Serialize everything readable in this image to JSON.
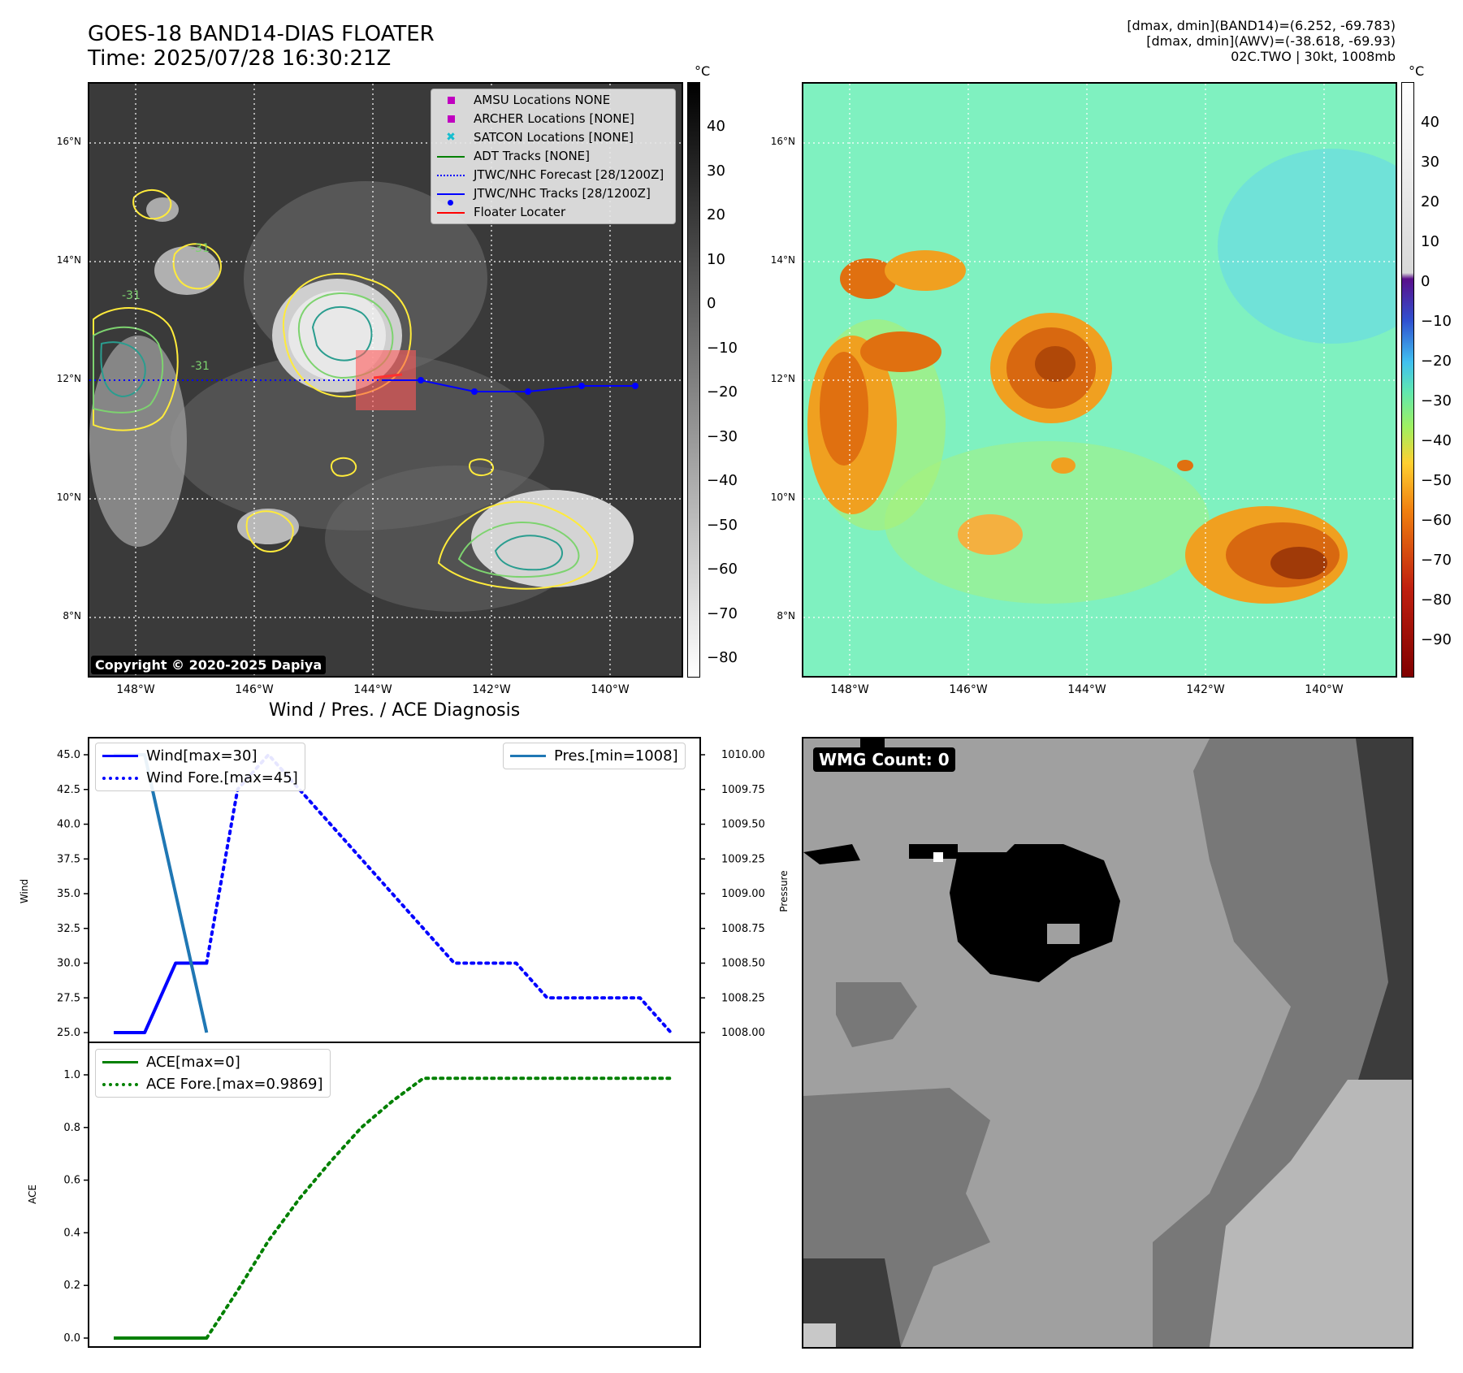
{
  "header": {
    "title_line1": "GOES-18 BAND14-DIAS FLOATER",
    "title_line2": "Time: 2025/07/28 16:30:21Z",
    "info_line1": "[dmax, dmin](BAND14)=(6.252, -69.783)",
    "info_line2": "[dmax, dmin](AWV)=(-38.618, -69.93)",
    "info_line3": "02C.TWO | 30kt, 1008mb"
  },
  "map": {
    "lat_labels": [
      "16°N",
      "14°N",
      "12°N",
      "10°N",
      "8°N"
    ],
    "lon_labels": [
      "148°W",
      "146°W",
      "144°W",
      "142°W",
      "140°W"
    ],
    "contour_labels": [
      "-31",
      "-31",
      "-31"
    ],
    "copyright": "Copyright © 2020-2025 Dapiya",
    "track_color": "#0000ff",
    "floater_color": "#ff3030"
  },
  "legend": {
    "items": [
      {
        "label": "AMSU Locations NONE",
        "icon": "magenta-square"
      },
      {
        "label": "ARCHER Locations [NONE]",
        "icon": "magenta-square"
      },
      {
        "label": "SATCON Locations [NONE]",
        "icon": "cyan-x"
      },
      {
        "label": "ADT Tracks [NONE]",
        "icon": "green-line"
      },
      {
        "label": "JTWC/NHC Forecast [28/1200Z]",
        "icon": "blue-dotted-line"
      },
      {
        "label": "JTWC/NHC Tracks [28/1200Z]",
        "icon": "blue-dot-line"
      },
      {
        "label": "Floater Locater",
        "icon": "red-line"
      }
    ]
  },
  "colorbar_gray": {
    "unit": "°C",
    "ticks": [
      "40",
      "30",
      "20",
      "10",
      "0",
      "−10",
      "−20",
      "−30",
      "−40",
      "−50",
      "−60",
      "−70",
      "−80"
    ]
  },
  "colorbar_color": {
    "unit": "°C",
    "ticks": [
      "40",
      "30",
      "20",
      "10",
      "0",
      "−10",
      "−20",
      "−30",
      "−40",
      "−50",
      "−60",
      "−70",
      "−80",
      "−90"
    ]
  },
  "diagnosis": {
    "title": "Wind / Pres. / ACE Diagnosis",
    "wind_ylabel": "Wind",
    "pres_ylabel": "Pressure",
    "ace_ylabel": "ACE",
    "wind_ticks": [
      "45.0",
      "42.5",
      "40.0",
      "37.5",
      "35.0",
      "32.5",
      "30.0",
      "27.5",
      "25.0"
    ],
    "pres_ticks": [
      "1010.00",
      "1009.75",
      "1009.50",
      "1009.25",
      "1009.00",
      "1008.75",
      "1008.50",
      "1008.25",
      "1008.00"
    ],
    "ace_ticks": [
      "1.0",
      "0.8",
      "0.6",
      "0.4",
      "0.2",
      "0.0"
    ],
    "legend_wind": "Wind[max=30]",
    "legend_wind_fore": "Wind Fore.[max=45]",
    "legend_pres": "Pres.[min=1008]",
    "legend_ace": "ACE[max=0]",
    "legend_ace_fore": "ACE Fore.[max=0.9869]",
    "wind_color": "#0000ff",
    "pres_color": "#1f77b4",
    "ace_color": "#008000"
  },
  "wmg": {
    "label": "WMG Count: 0"
  },
  "chart_data": [
    {
      "type": "line",
      "title": "Wind / Pres. / ACE Diagnosis",
      "ylabel": "Wind",
      "ylim": [
        25,
        45
      ],
      "series": [
        {
          "name": "Wind[max=30]",
          "x": [
            0,
            1,
            2,
            3
          ],
          "values": [
            25,
            25,
            30,
            30
          ]
        },
        {
          "name": "Wind Fore.[max=45]",
          "x": [
            3,
            4,
            5,
            6,
            7,
            8,
            9,
            10,
            11,
            12,
            13,
            14,
            15,
            16,
            17,
            18
          ],
          "values": [
            30,
            42.5,
            45,
            42.5,
            40,
            37.5,
            35,
            32.5,
            30,
            30,
            30,
            27.5,
            27.5,
            27.5,
            27.5,
            25
          ]
        }
      ]
    },
    {
      "type": "line",
      "ylabel": "Pressure",
      "ylim": [
        1008,
        1010
      ],
      "series": [
        {
          "name": "Pres.[min=1008]",
          "x": [
            0,
            1,
            2,
            3
          ],
          "values": [
            1010,
            1010,
            1009,
            1008
          ]
        }
      ]
    },
    {
      "type": "line",
      "ylabel": "ACE",
      "ylim": [
        0,
        1.0
      ],
      "series": [
        {
          "name": "ACE[max=0]",
          "x": [
            0,
            1,
            2,
            3
          ],
          "values": [
            0,
            0,
            0,
            0
          ]
        },
        {
          "name": "ACE Fore.[max=0.9869]",
          "x": [
            3,
            4,
            5,
            6,
            7,
            8,
            9,
            10,
            11,
            12,
            13,
            14,
            15,
            16,
            17,
            18
          ],
          "values": [
            0,
            0.18,
            0.37,
            0.53,
            0.67,
            0.8,
            0.9,
            0.9869,
            0.9869,
            0.9869,
            0.9869,
            0.9869,
            0.9869,
            0.9869,
            0.9869,
            0.9869
          ]
        }
      ]
    }
  ]
}
